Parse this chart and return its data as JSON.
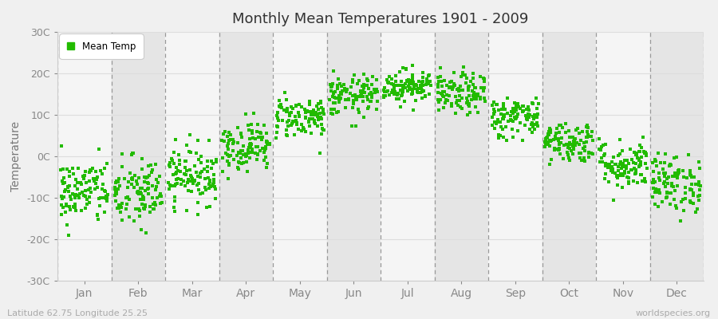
{
  "title": "Monthly Mean Temperatures 1901 - 2009",
  "ylabel": "Temperature",
  "footer_left": "Latitude 62.75 Longitude 25.25",
  "footer_right": "worldspecies.org",
  "ylim": [
    -30,
    30
  ],
  "yticks": [
    -30,
    -20,
    -10,
    0,
    10,
    20,
    30
  ],
  "ytick_labels": [
    "-30C",
    "-20C",
    "-10C",
    "0C",
    "10C",
    "20C",
    "30C"
  ],
  "months": [
    "Jan",
    "Feb",
    "Mar",
    "Apr",
    "May",
    "Jun",
    "Jul",
    "Aug",
    "Sep",
    "Oct",
    "Nov",
    "Dec"
  ],
  "dot_color": "#22bb00",
  "dot_size": 8,
  "background_color": "#f0f0f0",
  "plot_bg_light": "#f5f5f5",
  "plot_bg_dark": "#e5e5e5",
  "legend_label": "Mean Temp",
  "num_years": 109,
  "monthly_means": [
    -8.5,
    -9.0,
    -4.5,
    2.5,
    9.5,
    14.5,
    17.0,
    15.0,
    9.5,
    3.5,
    -2.0,
    -6.5
  ],
  "monthly_stds": [
    4.0,
    4.5,
    3.5,
    3.0,
    2.5,
    2.5,
    2.0,
    2.5,
    2.5,
    2.5,
    3.0,
    3.5
  ],
  "grid_color": "#dddddd",
  "vline_color": "#999999",
  "tick_color": "#888888",
  "spine_color": "#cccccc",
  "title_color": "#333333",
  "ylabel_color": "#777777",
  "footer_color": "#aaaaaa"
}
